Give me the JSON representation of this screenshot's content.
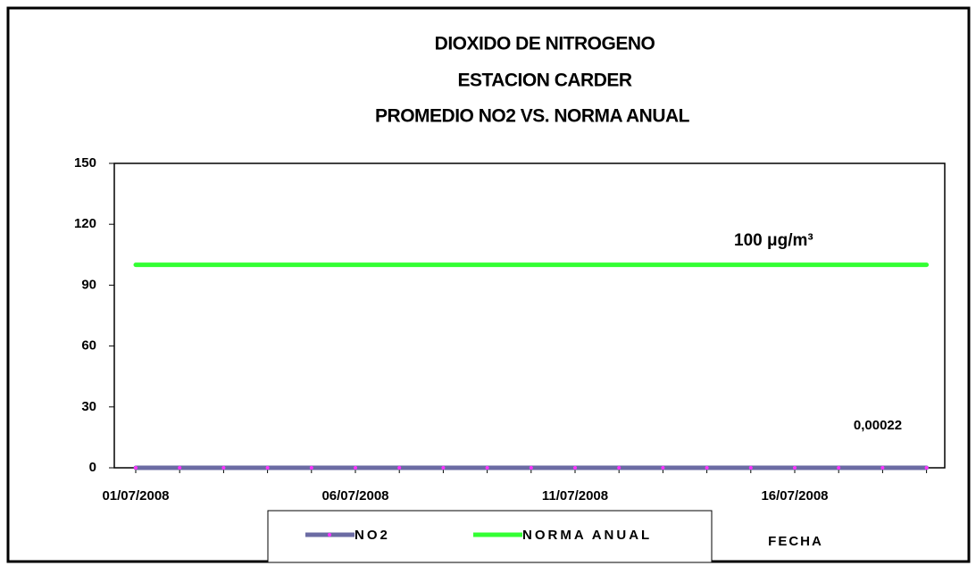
{
  "chart_data": {
    "type": "line",
    "title": [
      "DIOXIDO DE NITROGENO",
      "ESTACION CARDER",
      "PROMEDIO NO2 VS. NORMA ANUAL"
    ],
    "x_label": "FECHA",
    "categories": [
      "01/07/2008",
      null,
      null,
      null,
      null,
      "06/07/2008",
      null,
      null,
      null,
      null,
      "11/07/2008",
      null,
      null,
      null,
      null,
      "16/07/2008",
      null,
      null,
      null
    ],
    "series": [
      {
        "name": "NO2",
        "color": "#6b6ba3",
        "marker_color": "#ff33ff",
        "values": [
          0.00022,
          0.00022,
          0.00022,
          0.00022,
          0.00022,
          0.00022,
          0.00022,
          0.00022,
          0.00022,
          0.00022,
          0.00022,
          0.00022,
          0.00022,
          0.00022,
          0.00022,
          0.00022,
          0.00022,
          0.00022,
          0.00022
        ]
      },
      {
        "name": "NORMA ANUAL",
        "color": "#33ff33",
        "values": [
          100,
          100,
          100,
          100,
          100,
          100,
          100,
          100,
          100,
          100,
          100,
          100,
          100,
          100,
          100,
          100,
          100,
          100,
          100
        ]
      }
    ],
    "annotations": [
      "100 μg/m³",
      "0,00022"
    ],
    "ylim": [
      0,
      150
    ],
    "yticks": [
      0,
      30,
      60,
      90,
      120,
      150
    ],
    "legend": "bottom"
  }
}
